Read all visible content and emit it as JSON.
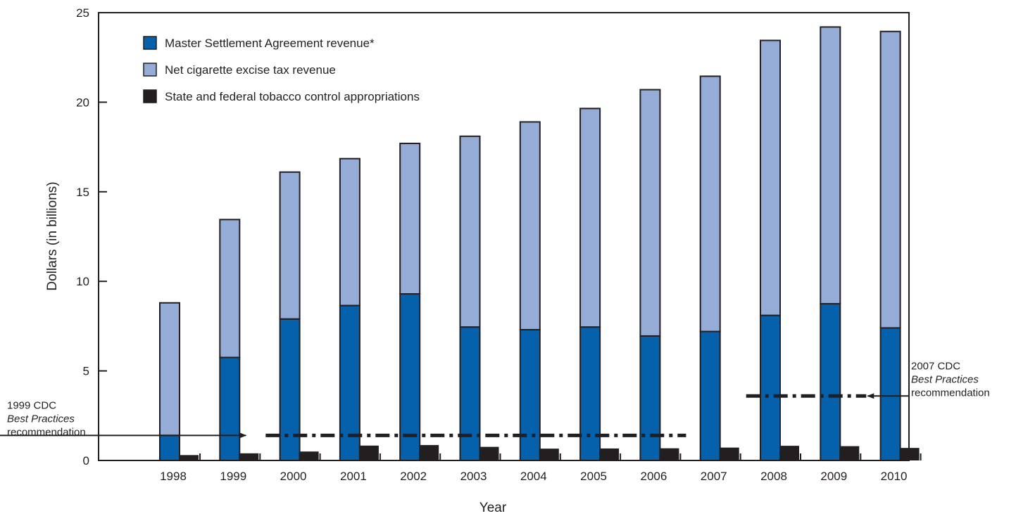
{
  "chart_data": {
    "type": "bar",
    "xlabel": "Year",
    "ylabel": "Dollars (in billions)",
    "ylim": [
      0,
      25
    ],
    "yticks": [
      "0",
      "5",
      "10",
      "15",
      "20",
      "25"
    ],
    "grid": false,
    "legend_position": "top-left",
    "categories": [
      "1998",
      "1999",
      "2000",
      "2001",
      "2002",
      "2003",
      "2004",
      "2005",
      "2006",
      "2007",
      "2008",
      "2009",
      "2010"
    ],
    "series": [
      {
        "name": "Master Settlement Agreement revenue*",
        "color": "#0561ab",
        "stack": "revenue",
        "values": [
          1.4,
          5.75,
          7.9,
          8.65,
          9.3,
          7.45,
          7.3,
          7.45,
          6.95,
          7.2,
          8.1,
          8.75,
          7.4
        ]
      },
      {
        "name": "Net cigarette excise tax revenue",
        "color": "#94acd6",
        "stack": "revenue",
        "values": [
          7.4,
          7.7,
          8.2,
          8.2,
          8.4,
          10.65,
          11.6,
          12.2,
          13.75,
          14.25,
          15.35,
          15.45,
          16.55
        ]
      },
      {
        "name": "State and federal tobacco control appropriations",
        "color": "#231f20",
        "stack": "appropriations",
        "values": [
          0.3,
          0.4,
          0.5,
          0.83,
          0.86,
          0.76,
          0.66,
          0.67,
          0.68,
          0.72,
          0.82,
          0.8,
          0.7
        ]
      }
    ],
    "annotations": [
      {
        "lines": [
          "1999 CDC",
          "Best Practices",
          "recommendation"
        ],
        "italic_line": 1,
        "value": 1.4,
        "from": "1999",
        "to": "2006"
      },
      {
        "lines": [
          "2007 CDC",
          "Best Practices",
          "recommendation"
        ],
        "italic_line": 1,
        "value": 3.6,
        "from": "2007",
        "to": "2009"
      }
    ]
  }
}
